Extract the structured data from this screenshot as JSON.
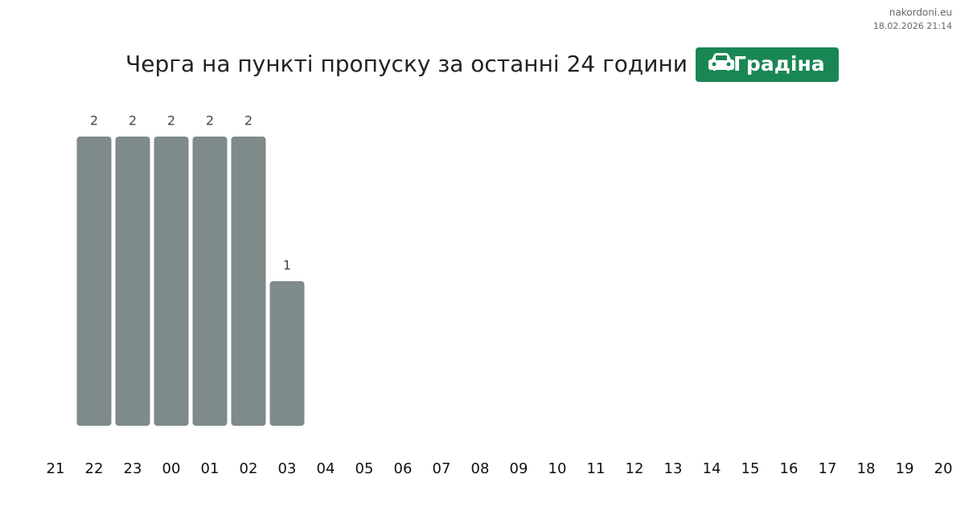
{
  "site": "nakordoni.eu",
  "timestamp": "18.02.2026 21:14",
  "chart_data": {
    "type": "bar",
    "title": "Черга на пункті пропуску за останні 24 години",
    "badge": "Градіна",
    "categories": [
      "21",
      "22",
      "23",
      "00",
      "01",
      "02",
      "03",
      "04",
      "05",
      "06",
      "07",
      "08",
      "09",
      "10",
      "11",
      "12",
      "13",
      "14",
      "15",
      "16",
      "17",
      "18",
      "19",
      "20",
      " "
    ],
    "values": [
      null,
      2,
      2,
      2,
      2,
      2,
      1,
      null,
      null,
      null,
      null,
      null,
      null,
      null,
      null,
      null,
      null,
      null,
      null,
      null,
      null,
      null,
      null,
      null,
      null
    ],
    "color": "#7f8a8a",
    "badge_color": "#198754"
  }
}
